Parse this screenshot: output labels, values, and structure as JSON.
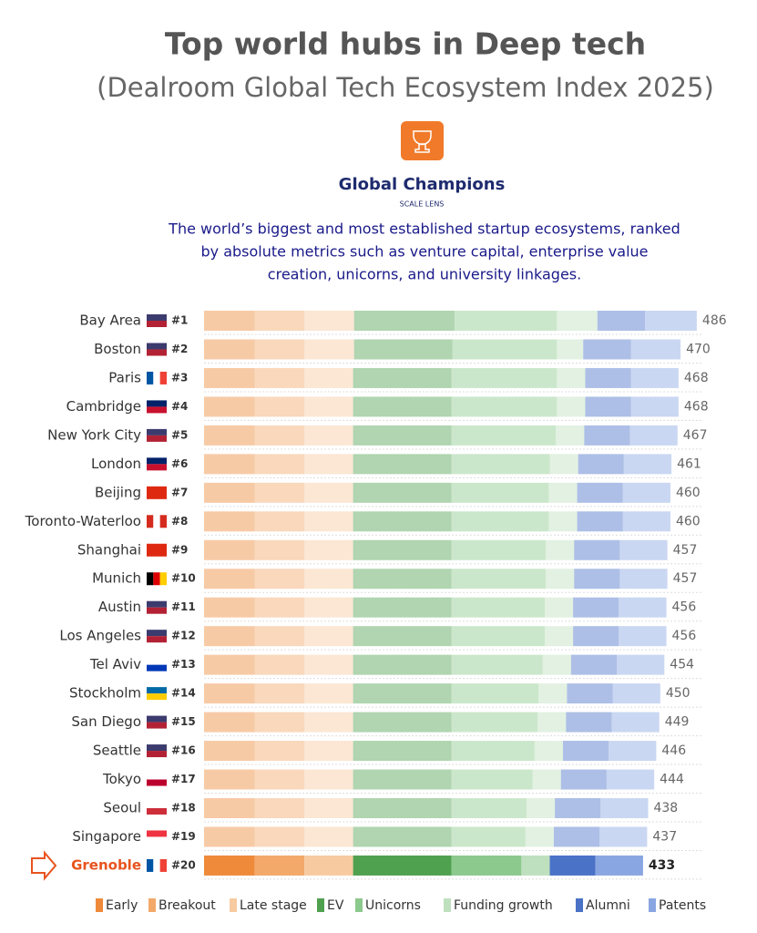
{
  "chart_data": {
    "type": "stacked-bar",
    "title": "Top world hubs in Deep tech",
    "subtitle": "(Dealroom Global Tech Ecosystem Index 2025)",
    "heading": "Global Champions",
    "lens": "SCALE LENS",
    "description": [
      "The world’s biggest and most established startup ecosystems, ranked",
      "by absolute metrics such as venture capital, enterprise value",
      "creation,  unicorns, and university linkages."
    ],
    "categories": [
      "Bay Area",
      "Boston",
      "Paris",
      "Cambridge",
      "New York City",
      "London",
      "Beijing",
      "Toronto-Waterloo",
      "Shanghai",
      "Munich",
      "Austin",
      "Los Angeles",
      "Tel Aviv",
      "Stockholm",
      "San Diego",
      "Seattle",
      "Tokyo",
      "Seoul",
      "Singapore",
      "Grenoble"
    ],
    "ranks": [
      "#1",
      "#2",
      "#3",
      "#4",
      "#5",
      "#6",
      "#7",
      "#8",
      "#9",
      "#10",
      "#11",
      "#12",
      "#13",
      "#14",
      "#15",
      "#16",
      "#17",
      "#18",
      "#19",
      "#20"
    ],
    "totals": [
      486,
      470,
      468,
      468,
      467,
      461,
      460,
      460,
      457,
      457,
      456,
      456,
      454,
      450,
      449,
      446,
      444,
      438,
      437,
      433
    ],
    "highlight_index": 19,
    "series": [
      {
        "name": "Early",
        "color": "#ee8a3a",
        "values": [
          50,
          50,
          50,
          50,
          50,
          50,
          50,
          50,
          50,
          50,
          50,
          50,
          50,
          50,
          50,
          50,
          50,
          50,
          50,
          50
        ]
      },
      {
        "name": "Breakout",
        "color": "#f2a96a",
        "values": [
          49,
          49,
          49,
          49,
          49,
          49,
          49,
          49,
          49,
          49,
          49,
          49,
          49,
          49,
          49,
          49,
          49,
          49,
          49,
          49
        ]
      },
      {
        "name": "Late stage",
        "color": "#f7caa0",
        "values": [
          49,
          49,
          48,
          48,
          48,
          48,
          48,
          48,
          48,
          48,
          48,
          48,
          48,
          48,
          48,
          48,
          48,
          48,
          48,
          48
        ]
      },
      {
        "name": "EV",
        "color": "#4fa14f",
        "values": [
          99,
          97,
          97,
          97,
          97,
          97,
          97,
          97,
          97,
          97,
          97,
          97,
          97,
          97,
          97,
          97,
          97,
          97,
          97,
          97
        ]
      },
      {
        "name": "Unicorns",
        "color": "#8cc98c",
        "values": [
          101,
          103,
          104,
          104,
          103,
          97,
          96,
          96,
          93,
          93,
          92,
          92,
          90,
          86,
          85,
          82,
          80,
          74,
          73,
          69
        ]
      },
      {
        "name": "Funding growth",
        "color": "#bfe0bf",
        "values": [
          40,
          26,
          28,
          28,
          28,
          28,
          28,
          28,
          28,
          28,
          28,
          28,
          28,
          28,
          28,
          28,
          28,
          28,
          28,
          28
        ]
      },
      {
        "name": "Alumni",
        "color": "#4a72c7",
        "values": [
          47,
          47,
          45,
          45,
          45,
          45,
          45,
          45,
          45,
          45,
          45,
          45,
          45,
          45,
          45,
          45,
          45,
          45,
          45,
          45
        ]
      },
      {
        "name": "Patents",
        "color": "#8aa6e2",
        "values": [
          51,
          49,
          47,
          47,
          47,
          47,
          47,
          47,
          47,
          47,
          47,
          47,
          47,
          47,
          47,
          47,
          47,
          47,
          47,
          47
        ]
      }
    ]
  }
}
